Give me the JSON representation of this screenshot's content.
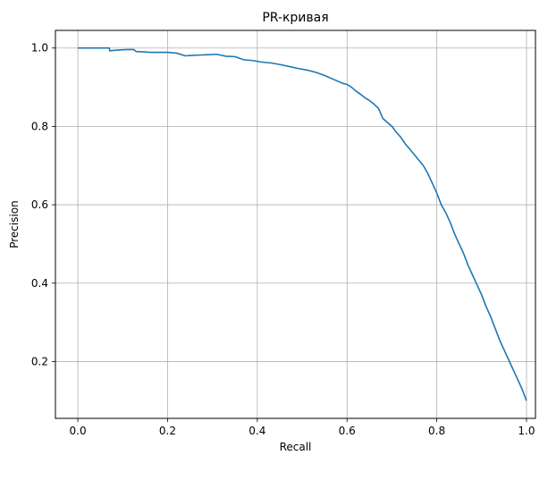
{
  "chart_data": {
    "type": "line",
    "title": "PR-кривая",
    "xlabel": "Recall",
    "ylabel": "Precision",
    "xlim": [
      -0.05,
      1.02
    ],
    "ylim": [
      0.055,
      1.045
    ],
    "grid": true,
    "x_ticks": [
      0.0,
      0.2,
      0.4,
      0.6,
      0.8,
      1.0
    ],
    "x_tick_labels": [
      "0.0",
      "0.2",
      "0.4",
      "0.6",
      "0.8",
      "1.0"
    ],
    "y_ticks": [
      0.2,
      0.4,
      0.6,
      0.8,
      1.0
    ],
    "y_tick_labels": [
      "0.2",
      "0.4",
      "0.6",
      "0.8",
      "1.0"
    ],
    "colors": {
      "line": "#1f77b4",
      "grid": "#b0b0b0",
      "axes": "#000000"
    },
    "series": [
      {
        "x": [
          0.0,
          0.01,
          0.03,
          0.05,
          0.07,
          0.071,
          0.09,
          0.11,
          0.125,
          0.13,
          0.15,
          0.16,
          0.18,
          0.2,
          0.22,
          0.24,
          0.25,
          0.27,
          0.29,
          0.31,
          0.33,
          0.35,
          0.37,
          0.39,
          0.41,
          0.43,
          0.45,
          0.47,
          0.49,
          0.51,
          0.53,
          0.55,
          0.57,
          0.59,
          0.6,
          0.61,
          0.62,
          0.63,
          0.64,
          0.65,
          0.66,
          0.67,
          0.68,
          0.69,
          0.7,
          0.71,
          0.72,
          0.73,
          0.74,
          0.75,
          0.76,
          0.77,
          0.78,
          0.79,
          0.8,
          0.81,
          0.82,
          0.83,
          0.84,
          0.85,
          0.86,
          0.87,
          0.88,
          0.89,
          0.9,
          0.91,
          0.92,
          0.93,
          0.94,
          0.95,
          0.96,
          0.97,
          0.98,
          0.99,
          1.0
        ],
        "y": [
          1.0,
          1.0,
          1.0,
          1.0,
          1.0,
          0.993,
          0.995,
          0.996,
          0.996,
          0.991,
          0.99,
          0.989,
          0.989,
          0.989,
          0.987,
          0.98,
          0.981,
          0.982,
          0.983,
          0.984,
          0.979,
          0.978,
          0.97,
          0.968,
          0.964,
          0.962,
          0.958,
          0.953,
          0.948,
          0.944,
          0.938,
          0.93,
          0.92,
          0.91,
          0.907,
          0.9,
          0.89,
          0.882,
          0.873,
          0.866,
          0.857,
          0.846,
          0.82,
          0.81,
          0.8,
          0.785,
          0.772,
          0.755,
          0.742,
          0.728,
          0.714,
          0.7,
          0.68,
          0.655,
          0.63,
          0.6,
          0.58,
          0.555,
          0.525,
          0.5,
          0.475,
          0.445,
          0.42,
          0.395,
          0.37,
          0.34,
          0.315,
          0.285,
          0.255,
          0.23,
          0.205,
          0.18,
          0.155,
          0.13,
          0.1
        ]
      }
    ]
  }
}
